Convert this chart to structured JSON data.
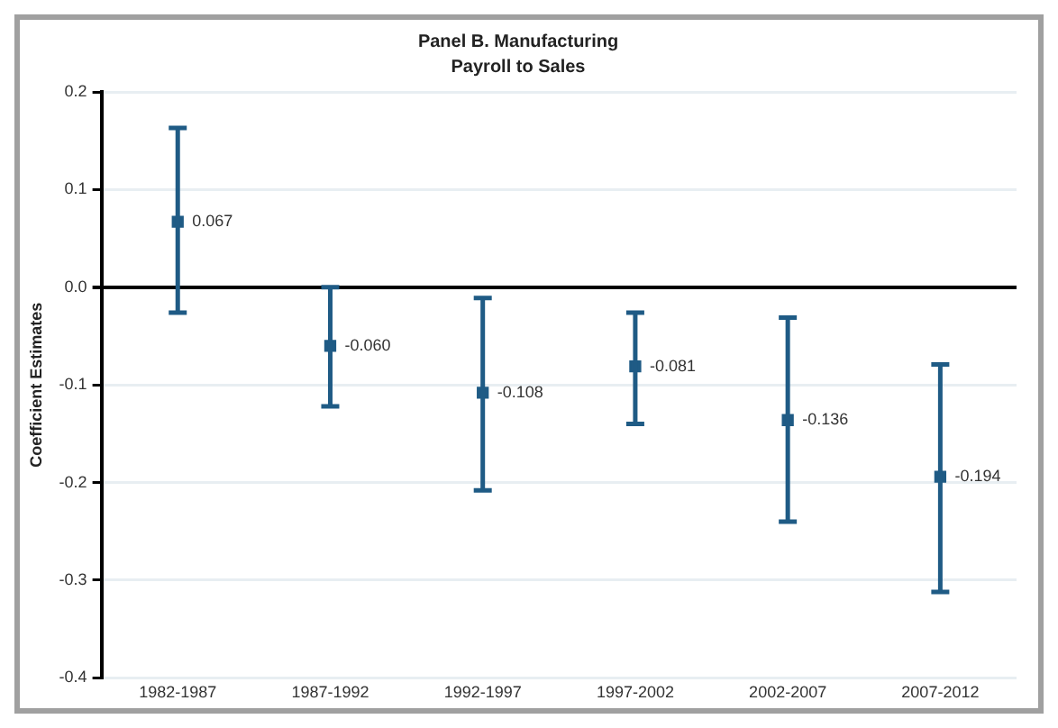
{
  "chart_data": {
    "type": "scatter",
    "title": "Panel B. Manufacturing",
    "subtitle": "Payroll to Sales",
    "ylabel": "Coefficient Estimates",
    "categories": [
      "1982-1987",
      "1987-1992",
      "1992-1997",
      "1997-2002",
      "2002-2007",
      "2007-2012"
    ],
    "series": [
      {
        "color": "#1f5b85",
        "values": [
          0.067,
          -0.06,
          -0.108,
          -0.081,
          -0.136,
          -0.194
        ],
        "value_labels": [
          "0.067",
          "-0.060",
          "-0.108",
          "-0.081",
          "-0.136",
          "-0.194"
        ],
        "errors": [
          [
            -0.026,
            0.163
          ],
          [
            -0.122,
            0.0
          ],
          [
            -0.208,
            -0.011
          ],
          [
            -0.14,
            -0.026
          ],
          [
            -0.24,
            -0.031
          ],
          [
            -0.312,
            -0.079
          ]
        ]
      }
    ],
    "ylim": [
      -0.4,
      0.2
    ],
    "yticks": [
      -0.4,
      -0.3,
      -0.2,
      -0.1,
      {
        "value": 0,
        "label": "0.0"
      },
      0.1,
      0.2
    ],
    "grid": "y",
    "marker": "square",
    "legend": false
  }
}
